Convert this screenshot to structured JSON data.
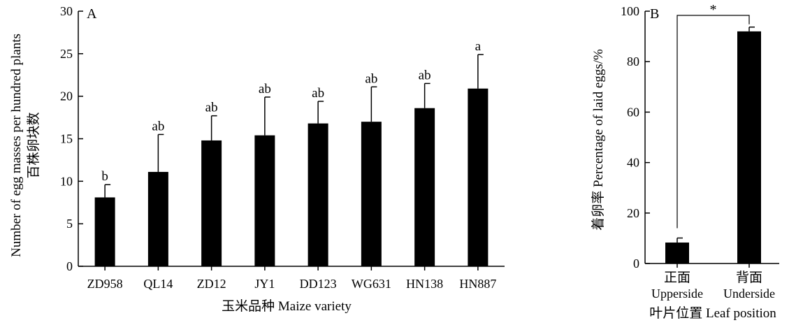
{
  "chart_data": [
    {
      "panel": "A",
      "type": "bar",
      "title": "",
      "ylabel_cn": "百株卵块数",
      "ylabel": "Number of egg masses per hundred plants",
      "xlabel_cn": "玉米品种",
      "xlabel": "Maize variety",
      "ylim": [
        0,
        30
      ],
      "yticks": [
        0,
        5,
        10,
        15,
        20,
        25,
        30
      ],
      "categories": [
        "ZD958",
        "QL14",
        "ZD12",
        "JY1",
        "DD123",
        "WG631",
        "HN138",
        "HN887"
      ],
      "values": [
        8.1,
        11.1,
        14.8,
        15.4,
        16.8,
        17.0,
        18.6,
        20.9
      ],
      "errors": [
        1.5,
        4.4,
        2.9,
        4.5,
        2.6,
        4.1,
        2.9,
        4.0
      ],
      "significance": [
        "b",
        "ab",
        "ab",
        "ab",
        "ab",
        "ab",
        "ab",
        "a"
      ],
      "grid": false,
      "bar_color": "#000000"
    },
    {
      "panel": "B",
      "type": "bar",
      "title": "",
      "ylabel_cn": "着卵率",
      "ylabel": "Percentage of laid eggs/%",
      "xlabel_cn": "叶片位置",
      "xlabel": "Leaf position",
      "ylim": [
        0,
        100
      ],
      "yticks": [
        0,
        20,
        40,
        60,
        80,
        100
      ],
      "categories_cn": [
        "正面",
        "背面"
      ],
      "categories": [
        "Upperside",
        "Underside"
      ],
      "values": [
        8.3,
        92.0
      ],
      "errors": [
        1.8,
        1.7
      ],
      "comparison_marker": "*",
      "grid": false,
      "bar_color": "#000000"
    }
  ]
}
